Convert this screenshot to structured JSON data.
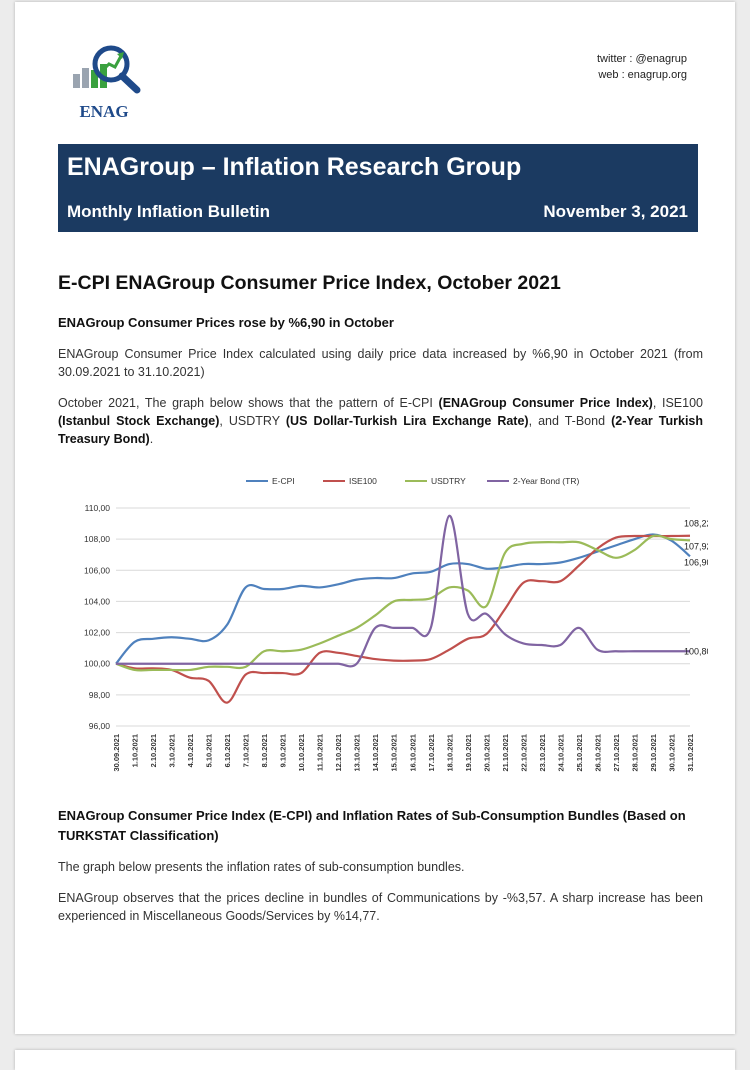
{
  "header": {
    "logo_text": "ENAG",
    "twitter": "twitter : @enagrup",
    "web": "web : enagrup.org"
  },
  "banner": {
    "title": "ENAGroup – Inflation Research Group",
    "subtitle": "Monthly Inflation Bulletin",
    "date": "November 3, 2021"
  },
  "section1": {
    "title": "E-CPI ENAGroup Consumer Price Index, October 2021",
    "subtitle": "ENAGroup Consumer Prices rose by %6,90 in October",
    "para1": "ENAGroup Consumer Price Index calculated using daily price data increased by %6,90 in October 2021 (from 30.09.2021 to 31.10.2021)",
    "para2": {
      "t1": "October 2021, The graph below shows that the pattern of E-CPI ",
      "b1": "(ENAGroup Consumer Price Index)",
      "t2": ", ISE100 ",
      "b2": "(Istanbul Stock Exchange)",
      "t3": ", USDTRY ",
      "b3": "(US Dollar-Turkish Lira Exchange Rate)",
      "t4": ", and T-Bond ",
      "b4": "(2-Year Turkish Treasury Bond)",
      "t5": "."
    }
  },
  "chart_data": {
    "type": "line",
    "x": [
      "30.09.2021",
      "1.10.2021",
      "2.10.2021",
      "3.10.2021",
      "4.10.2021",
      "5.10.2021",
      "6.10.2021",
      "7.10.2021",
      "8.10.2021",
      "9.10.2021",
      "10.10.2021",
      "11.10.2021",
      "12.10.2021",
      "13.10.2021",
      "14.10.2021",
      "15.10.2021",
      "16.10.2021",
      "17.10.2021",
      "18.10.2021",
      "19.10.2021",
      "20.10.2021",
      "21.10.2021",
      "22.10.2021",
      "23.10.2021",
      "24.10.2021",
      "25.10.2021",
      "26.10.2021",
      "27.10.2021",
      "28.10.2021",
      "29.10.2021",
      "30.10.2021",
      "31.10.2021"
    ],
    "ylim": [
      96,
      110
    ],
    "yticks": [
      "96,00",
      "98,00",
      "100,00",
      "102,00",
      "104,00",
      "106,00",
      "108,00",
      "110,00"
    ],
    "grid": true,
    "legend": "top",
    "series": [
      {
        "name": "E-CPI",
        "color": "#4f81bd",
        "values": [
          100.0,
          101.4,
          101.6,
          101.7,
          101.6,
          101.5,
          102.5,
          104.9,
          104.8,
          104.8,
          105.0,
          104.9,
          105.1,
          105.4,
          105.5,
          105.5,
          105.8,
          105.9,
          106.4,
          106.4,
          106.1,
          106.2,
          106.4,
          106.4,
          106.5,
          106.8,
          107.2,
          107.6,
          108.0,
          108.3,
          107.9,
          106.9
        ]
      },
      {
        "name": "ISE100",
        "color": "#c0504d",
        "values": [
          100.0,
          99.7,
          99.7,
          99.6,
          99.1,
          98.9,
          97.5,
          99.3,
          99.4,
          99.4,
          99.4,
          100.7,
          100.7,
          100.5,
          100.3,
          100.2,
          100.2,
          100.3,
          100.9,
          101.6,
          101.9,
          103.5,
          105.2,
          105.3,
          105.3,
          106.3,
          107.4,
          108.1,
          108.2,
          108.2,
          108.2,
          108.22
        ]
      },
      {
        "name": "USDTRY",
        "color": "#9bbb59",
        "values": [
          100.0,
          99.6,
          99.6,
          99.6,
          99.6,
          99.8,
          99.8,
          99.8,
          100.8,
          100.8,
          100.9,
          101.3,
          101.8,
          102.3,
          103.1,
          104.0,
          104.1,
          104.2,
          104.9,
          104.7,
          103.7,
          107.1,
          107.7,
          107.8,
          107.8,
          107.8,
          107.3,
          106.8,
          107.3,
          108.2,
          108.0,
          107.92
        ]
      },
      {
        "name": "2-Year Bond (TR)",
        "color": "#8064a2",
        "values": [
          100.0,
          100.0,
          100.0,
          100.0,
          100.0,
          100.0,
          100.0,
          100.0,
          100.0,
          100.0,
          100.0,
          100.0,
          100.0,
          100.0,
          102.3,
          102.3,
          102.3,
          102.3,
          109.5,
          103.2,
          103.2,
          101.9,
          101.3,
          101.2,
          101.2,
          102.3,
          100.9,
          100.8,
          100.8,
          100.8,
          100.8,
          100.8
        ]
      }
    ],
    "end_labels": [
      "108,22",
      "107,92",
      "106,90",
      "100,80"
    ]
  },
  "section2": {
    "title": "ENAGroup Consumer Price Index (E-CPI) and Inflation Rates of Sub-Consumption Bundles (Based on TURKSTAT Classification)",
    "para1": "The graph below presents the inflation rates of sub-consumption bundles.",
    "para2": "ENAGroup observes that the prices decline in bundles of Communications by -%3,57. A sharp increase has been experienced in Miscellaneous Goods/Services by %14,77."
  }
}
